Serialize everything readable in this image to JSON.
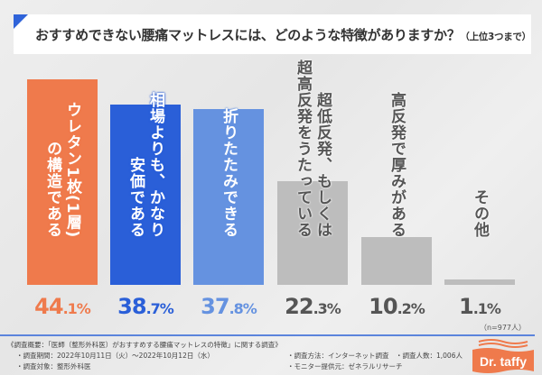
{
  "title": {
    "main": "おすすめできない腰痛マットレスには、どのような特徴がありますか？",
    "sub": "（上位3つまで）"
  },
  "chart_data": {
    "type": "bar",
    "categories": [
      [
        "ウレタン1枚(1層)",
        "の構造である"
      ],
      [
        "相場よりも、かなり",
        "安価である"
      ],
      [
        "折りたたみできる"
      ],
      [
        "超低反発、もしくは",
        "超高反発をうたっている"
      ],
      [
        "高反発で厚みがある"
      ],
      [
        "その他"
      ]
    ],
    "values": [
      44.1,
      38.7,
      37.8,
      22.3,
      10.2,
      1.1
    ],
    "value_labels": [
      "44.1%",
      "38.7%",
      "37.8%",
      "22.3%",
      "10.2%",
      "1.1%"
    ],
    "colors": [
      "#ef7a4c",
      "#2a5fd8",
      "#6592e0",
      "#bdbdbd",
      "#bdbdbd",
      "#bdbdbd"
    ],
    "label_colors": [
      "#ef7a4c",
      "#2a5fd8",
      "#6592e0",
      "#555555",
      "#555555",
      "#555555"
    ],
    "ylim": [
      0,
      44.1
    ],
    "grid": false
  },
  "sample_note": "（n=977人）",
  "footer": {
    "heading": "《調査概要：「医師（整形外科医）がおすすめする腰痛マットレスの特徴」に関する調査》",
    "period": "・調査期間：2022年10月11日（火）～2022年10月12日（水）",
    "method": "・調査方法：インターネット調査",
    "count": "・調査人数：1,006人",
    "target": "・調査対象：整形外科医",
    "provider": "・モニター提供元：ゼネラルリサーチ"
  },
  "logo": {
    "text": "Dr. taffy",
    "color": "#ef7a4c"
  }
}
